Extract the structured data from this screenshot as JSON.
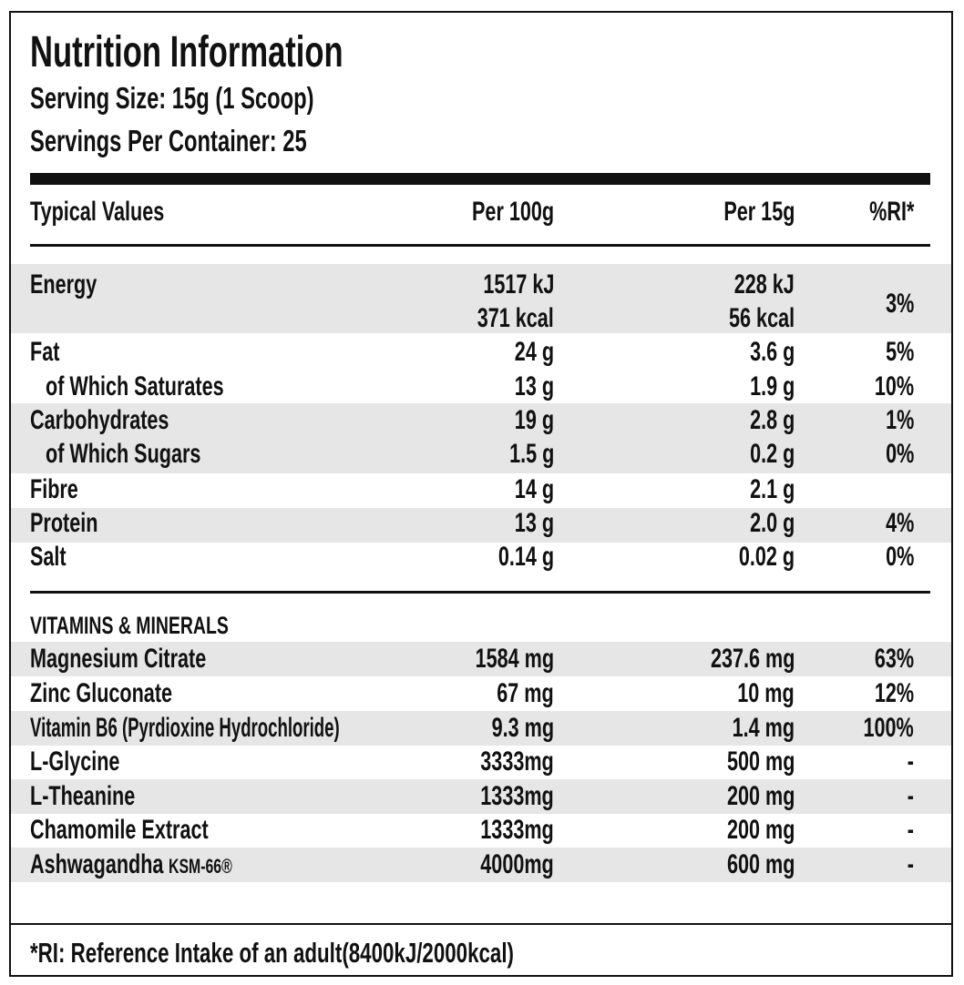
{
  "header": {
    "title": "Nutrition Information",
    "serving_size": "Serving Size: 15g (1 Scoop)",
    "servings_per_container": "Servings Per Container: 25"
  },
  "table": {
    "columns": [
      "Typical Values",
      "Per 100g",
      "Per 15g",
      "%RI*"
    ],
    "nutrients": [
      {
        "name": "Energy",
        "per_100g": [
          "1517 kJ",
          "371 kcal"
        ],
        "per_15g": [
          "228 kJ",
          "56 kcal"
        ],
        "ri": "3%"
      },
      {
        "name": "Fat",
        "per_100g": "24 g",
        "per_15g": "3.6 g",
        "ri": "5%"
      },
      {
        "name": "of Which Saturates",
        "per_100g": "13 g",
        "per_15g": "1.9 g",
        "ri": "10%"
      },
      {
        "name": "Carbohydrates",
        "per_100g": "19 g",
        "per_15g": "2.8 g",
        "ri": "1%"
      },
      {
        "name": "of Which Sugars",
        "per_100g": "1.5 g",
        "per_15g": "0.2 g",
        "ri": "0%"
      },
      {
        "name": "Fibre",
        "per_100g": "14 g",
        "per_15g": "2.1 g"
      },
      {
        "name": "Protein",
        "per_100g": "13 g",
        "per_15g": "2.0 g",
        "ri": "4%"
      },
      {
        "name": "Salt",
        "per_100g": "0.14 g",
        "per_15g": "0.02 g",
        "ri": "0%"
      }
    ],
    "vitamins_heading": "VITAMINS & MINERALS",
    "vitamins": [
      {
        "name": "Magnesium Citrate",
        "per_100g": "1584 mg",
        "per_15g": "237.6 mg",
        "ri": "63%"
      },
      {
        "name": "Zinc Gluconate",
        "per_100g": "67 mg",
        "per_15g": "10 mg",
        "ri": "12%"
      },
      {
        "name": "Vitamin B6 (Pyrdioxine Hydrochloride)",
        "per_100g": "9.3 mg",
        "per_15g": "1.4 mg",
        "ri": "100%"
      },
      {
        "name": "L-Glycine",
        "per_100g": "3333mg",
        "per_15g": "500 mg",
        "ri": "-"
      },
      {
        "name": "L-Theanine",
        "per_100g": "1333mg",
        "per_15g": "200 mg",
        "ri": "-"
      },
      {
        "name": "Chamomile Extract",
        "per_100g": "1333mg",
        "per_15g": "200 mg",
        "ri": "-"
      },
      {
        "name": "Ashwagandha",
        "note": "KSM-66®",
        "per_100g": "4000mg",
        "per_15g": "600 mg",
        "ri": "-"
      }
    ]
  },
  "footnote": "*RI: Reference Intake of an adult(8400kJ/2000kcal)"
}
